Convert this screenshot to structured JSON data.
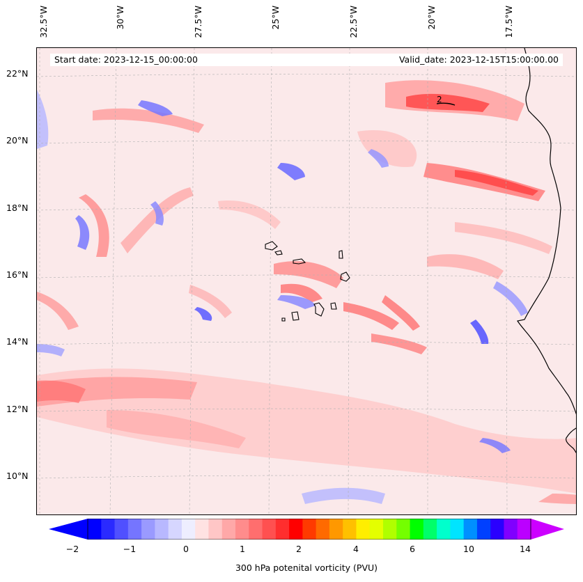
{
  "map": {
    "start_label": "Start date: 2023-12-15_00:00:00",
    "valid_label": "Valid_date: 2023-12-15T15:00:00.00",
    "lon_ticks": [
      "32.5°W",
      "30°W",
      "27.5°W",
      "25°W",
      "22.5°W",
      "20°W",
      "17.5°W"
    ],
    "lat_ticks": [
      "22°N",
      "20°N",
      "18°N",
      "16°N",
      "14°N",
      "12°N",
      "10°N"
    ],
    "extent": {
      "lon_min": -33.0,
      "lon_max": -15.6,
      "lat_min": 8.9,
      "lat_max": 22.8
    },
    "contour_label": "2",
    "colors": {
      "coastline": "#000000",
      "gridline": "#b0b0b0",
      "background": "#fbe9ea"
    }
  },
  "colorbar": {
    "label": "300 hPa potenital vorticity (PVU)",
    "tick_labels": [
      "−2",
      "−1",
      "0",
      "1",
      "2",
      "4",
      "6",
      "10",
      "14"
    ],
    "colors": [
      "#0000ff",
      "#2a2aff",
      "#5050ff",
      "#7575ff",
      "#9a9aff",
      "#b8b8ff",
      "#d6d6ff",
      "#eeeeff",
      "#ffe2e2",
      "#ffc6c6",
      "#ffa8a8",
      "#ff8c8c",
      "#ff6e6e",
      "#ff5050",
      "#ff2e2e",
      "#ff0000",
      "#ff3a00",
      "#ff6a00",
      "#ff9800",
      "#ffc000",
      "#ffee00",
      "#e4ff00",
      "#b0ff00",
      "#74ff00",
      "#00ff00",
      "#00ff6a",
      "#00ffcc",
      "#00e4ff",
      "#0090ff",
      "#0040ff",
      "#2a00ff",
      "#8000ff",
      "#bb00ff"
    ]
  }
}
